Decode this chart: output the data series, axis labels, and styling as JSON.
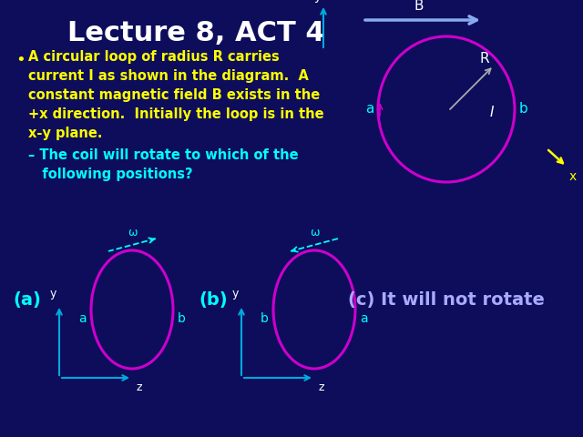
{
  "background_color": "#0d0d5c",
  "title": "Lecture 8, ACT 4",
  "title_color": "#ffffff",
  "title_fontsize": 22,
  "bullet_lines": [
    "A circular loop of radius R carries",
    "current I as shown in the diagram.  A",
    "constant magnetic field B exists in the",
    "+x direction.  Initially the loop is in the",
    "x-y plane."
  ],
  "bullet_color": "#ffff00",
  "sub_line1": "– The coil will rotate to which of the",
  "sub_line2": "   following positions?",
  "sub_color": "#00ffff",
  "circle_color": "#cc00cc",
  "axis_color": "#00aadd",
  "B_color": "#88aaee",
  "white": "#ffffff",
  "cyan": "#00ffff",
  "yellow": "#ffff00",
  "c_label": "(c) It will not rotate",
  "c_color": "#aaaaff",
  "a_label": "(a)",
  "b_label": "(b)",
  "ab_color": "#00ffff"
}
